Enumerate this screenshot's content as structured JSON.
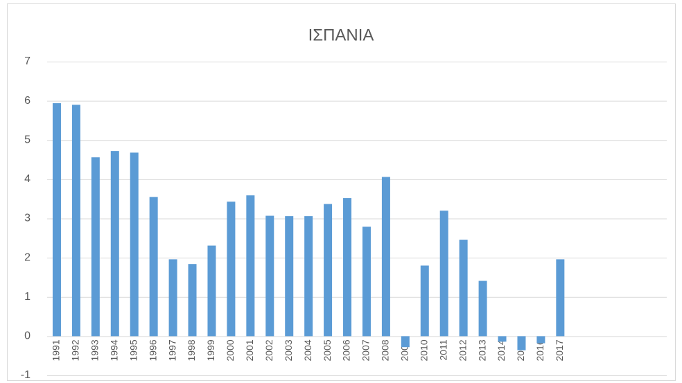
{
  "chart_data": {
    "type": "bar",
    "title": "ΙΣΠΑΝΙΑ",
    "categories": [
      "1991",
      "1992",
      "1993",
      "1994",
      "1995",
      "1996",
      "1997",
      "1998",
      "1999",
      "2000",
      "2001",
      "2002",
      "2003",
      "2004",
      "2005",
      "2006",
      "2007",
      "2008",
      "2009",
      "2010",
      "2011",
      "2012",
      "2013",
      "2014",
      "2015",
      "2016",
      "2017",
      null,
      null,
      null,
      null,
      null
    ],
    "values": [
      5.94,
      5.9,
      4.56,
      4.72,
      4.68,
      3.55,
      1.96,
      1.84,
      2.31,
      3.43,
      3.59,
      3.07,
      3.06,
      3.06,
      3.37,
      3.52,
      2.79,
      4.06,
      -0.28,
      1.8,
      3.2,
      2.46,
      1.41,
      -0.14,
      -0.36,
      -0.18,
      1.96,
      null,
      null,
      null,
      null,
      null
    ],
    "color": "#5b9bd5",
    "ylim": [
      -1,
      7
    ],
    "yticks": [
      -1,
      0,
      1,
      2,
      3,
      4,
      5,
      6,
      7
    ],
    "grid": true
  }
}
